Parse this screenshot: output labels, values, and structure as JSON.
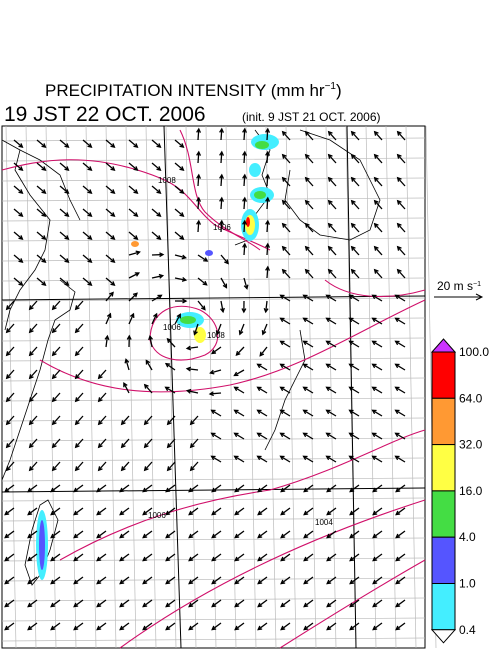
{
  "title": {
    "text": "PRECIPITATION INTENSITY (mm hr",
    "exponent": "−1",
    "close": ")"
  },
  "valid_time": "19 JST 22 OCT. 2006",
  "init_time": "(init. 9 JST 21 OCT. 2006)",
  "reference_vector": {
    "text": "20 m s",
    "exponent": "−1"
  },
  "colorbar": {
    "labels": [
      "100.0",
      "64.0",
      "32.0",
      "16.0",
      "4.0",
      "1.0",
      "0.4"
    ],
    "colors": [
      "#cc33ff",
      "#ff0000",
      "#ff9933",
      "#ffff44",
      "#44dd44",
      "#5555ff",
      "#44eeff",
      "#ffffff"
    ]
  },
  "isobar_labels": [
    "1008",
    "1006",
    "1006",
    "1008",
    "1006",
    "1004"
  ]
}
